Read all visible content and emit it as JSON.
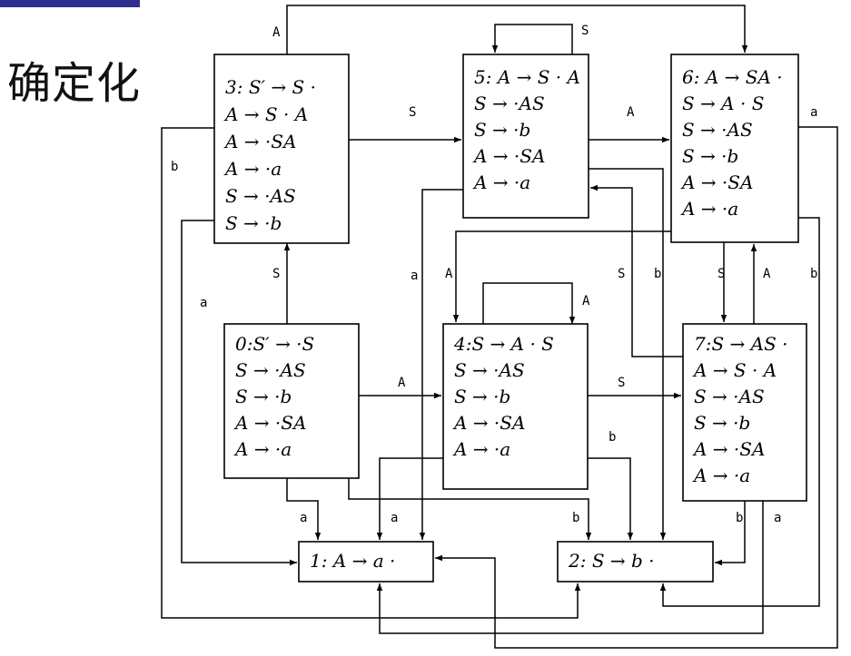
{
  "slide": {
    "title": "确定化",
    "accent_color": "#2e2f8c"
  },
  "diagram": {
    "states": [
      {
        "id": "0",
        "items": [
          "0:S′ → ·S",
          "S → ·AS",
          "S → ·b",
          "A → ·SA",
          "A → ·a"
        ]
      },
      {
        "id": "1",
        "items": [
          "1: A  →  a ·"
        ]
      },
      {
        "id": "2",
        "items": [
          "2: S  →  b ·"
        ]
      },
      {
        "id": "3",
        "items": [
          "3: S′ → S ·",
          "A → S · A",
          "A → ·SA",
          "A → ·a",
          "S → ·AS",
          "S → ·b"
        ]
      },
      {
        "id": "4",
        "items": [
          "4:S → A · S",
          "S → ·AS",
          "S → ·b",
          "A → ·SA",
          "A → ·a"
        ]
      },
      {
        "id": "5",
        "items": [
          "5: A → S · A",
          "S → ·AS",
          "S → ·b",
          "A → ·SA",
          "A → ·a"
        ]
      },
      {
        "id": "6",
        "items": [
          "6: A → SA ·",
          "S → A · S",
          "S → ·AS",
          "S → ·b",
          "A → ·SA",
          "A → ·a"
        ]
      },
      {
        "id": "7",
        "items": [
          "7:S → AS ·",
          "A → S · A",
          "S → ·AS",
          "S → ·b",
          "A → ·SA",
          "A → ·a"
        ]
      }
    ],
    "transitions": [
      {
        "from": "0",
        "to": "3",
        "symbol": "S"
      },
      {
        "from": "0",
        "to": "4",
        "symbol": "A"
      },
      {
        "from": "0",
        "to": "1",
        "symbol": "a"
      },
      {
        "from": "0",
        "to": "2",
        "symbol": "b"
      },
      {
        "from": "3",
        "to": "5",
        "symbol": "S"
      },
      {
        "from": "3",
        "to": "6",
        "symbol": "A"
      },
      {
        "from": "3",
        "to": "1",
        "symbol": "a"
      },
      {
        "from": "3",
        "to": "2",
        "symbol": "b"
      },
      {
        "from": "4",
        "to": "4",
        "symbol": "A"
      },
      {
        "from": "4",
        "to": "7",
        "symbol": "S"
      },
      {
        "from": "4",
        "to": "1",
        "symbol": "a"
      },
      {
        "from": "4",
        "to": "2",
        "symbol": "b"
      },
      {
        "from": "5",
        "to": "5",
        "symbol": "S"
      },
      {
        "from": "5",
        "to": "6",
        "symbol": "A"
      },
      {
        "from": "5",
        "to": "1",
        "symbol": "a"
      },
      {
        "from": "5",
        "to": "2",
        "symbol": "b"
      },
      {
        "from": "6",
        "to": "7",
        "symbol": "S"
      },
      {
        "from": "6",
        "to": "4",
        "symbol": "A"
      },
      {
        "from": "6",
        "to": "1",
        "symbol": "a"
      },
      {
        "from": "6",
        "to": "2",
        "symbol": "b"
      },
      {
        "from": "7",
        "to": "6",
        "symbol": "A"
      },
      {
        "from": "7",
        "to": "5",
        "symbol": "S"
      },
      {
        "from": "7",
        "to": "1",
        "symbol": "a"
      },
      {
        "from": "7",
        "to": "2",
        "symbol": "b"
      }
    ]
  }
}
